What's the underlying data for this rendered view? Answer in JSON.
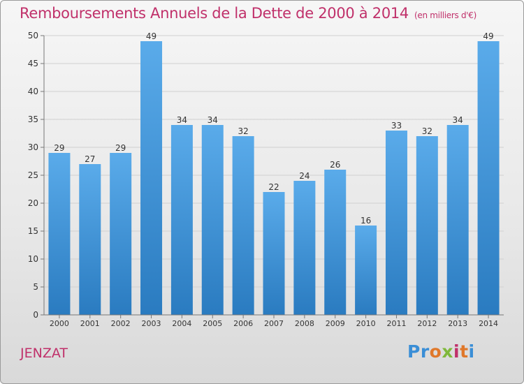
{
  "title": "Remboursements Annuels de la Dette de 2000 à 2014",
  "subtitle": "(en milliers d'€)",
  "commune": "JENZAT",
  "logo": {
    "text": "Proxiti",
    "letters": [
      {
        "ch": "P",
        "color": "#3a8ed6"
      },
      {
        "ch": "r",
        "color": "#3a8ed6"
      },
      {
        "ch": "o",
        "color": "#e0782a"
      },
      {
        "ch": "x",
        "color": "#7fb83a"
      },
      {
        "ch": "i",
        "color": "#c0306a"
      },
      {
        "ch": "t",
        "color": "#e0782a"
      },
      {
        "ch": "i",
        "color": "#3a8ed6"
      }
    ]
  },
  "colors": {
    "accent": "#c0306a",
    "bar_light": "#5aabea",
    "bar_dark": "#2a7bc0"
  },
  "chart_data": {
    "type": "bar",
    "categories": [
      "2000",
      "2001",
      "2002",
      "2003",
      "2004",
      "2005",
      "2006",
      "2007",
      "2008",
      "2009",
      "2010",
      "2011",
      "2012",
      "2013",
      "2014"
    ],
    "values": [
      29,
      27,
      29,
      49,
      34,
      34,
      32,
      22,
      24,
      26,
      16,
      33,
      32,
      34,
      49
    ],
    "ylim": [
      0,
      50
    ],
    "yticks": [
      0,
      5,
      10,
      15,
      20,
      25,
      30,
      35,
      40,
      45,
      50
    ],
    "grid": "horizontal",
    "data_labels": true,
    "xlabel": "",
    "ylabel": ""
  }
}
